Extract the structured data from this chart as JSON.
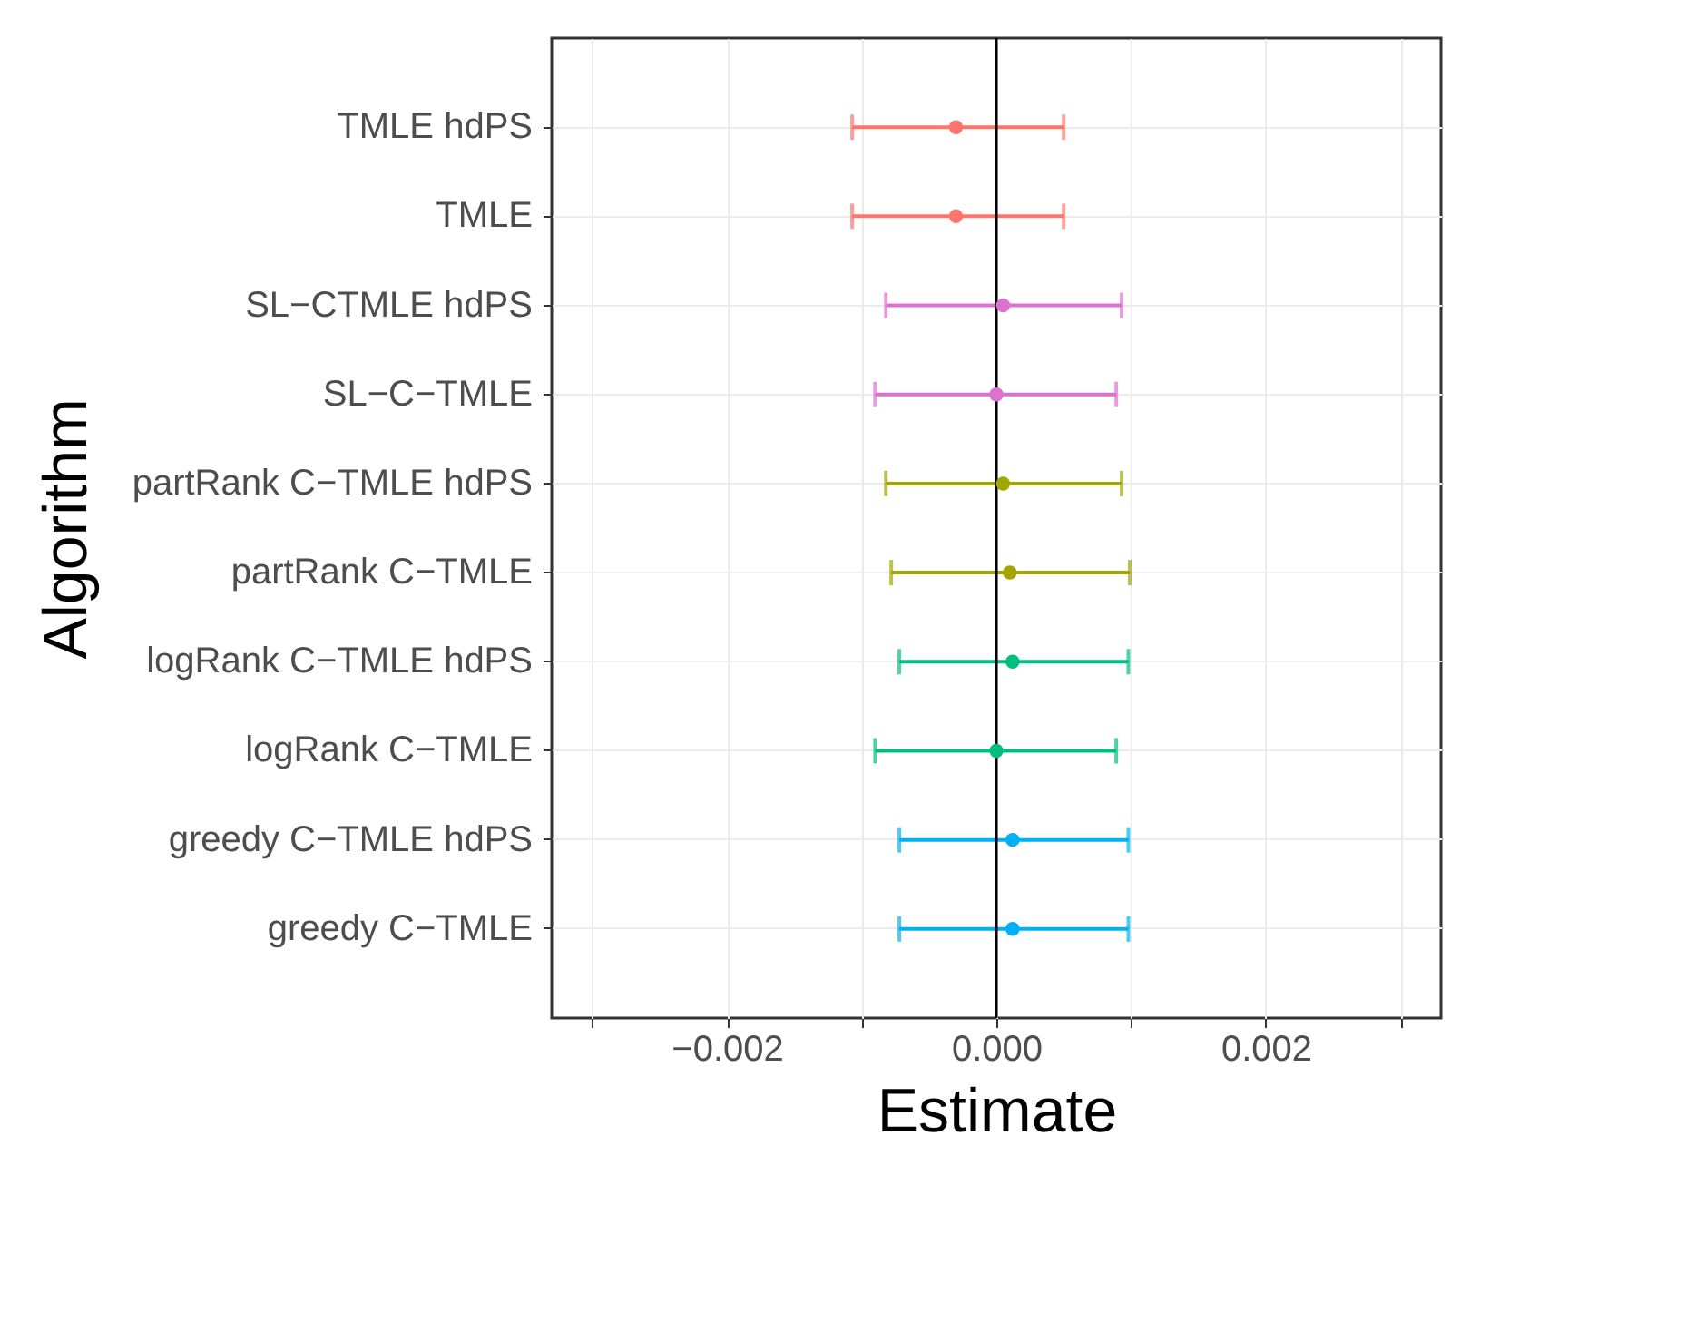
{
  "chart_data": {
    "type": "scatter",
    "orientation": "horizontal",
    "xlabel": "Estimate",
    "ylabel": "Algorithm",
    "categories": [
      "TMLE hdPS",
      "TMLE",
      "SL−CTMLE hdPS",
      "SL−C−TMLE",
      "partRank C−TMLE hdPS",
      "partRank C−TMLE",
      "logRank C−TMLE hdPS",
      "logRank C−TMLE",
      "greedy C−TMLE hdPS",
      "greedy C−TMLE"
    ],
    "values": [
      -0.0003,
      -0.0003,
      5e-05,
      0.0,
      5e-05,
      0.0001,
      0.00012,
      0.0,
      0.00012,
      0.00012
    ],
    "errors": [
      [
        -0.00107,
        0.0005
      ],
      [
        -0.00107,
        0.0005
      ],
      [
        -0.00082,
        0.00093
      ],
      [
        -0.0009,
        0.00089
      ],
      [
        -0.00082,
        0.00093
      ],
      [
        -0.00078,
        0.00099
      ],
      [
        -0.00072,
        0.00098
      ],
      [
        -0.0009,
        0.00089
      ],
      [
        -0.00072,
        0.00098
      ],
      [
        -0.00072,
        0.00098
      ]
    ],
    "colors": [
      "#f8766d",
      "#f8766d",
      "#dd71cf",
      "#dd71cf",
      "#a3a500",
      "#a3a500",
      "#00bf7d",
      "#00bf7d",
      "#00b0f6",
      "#00b0f6"
    ],
    "xlim": [
      -0.0033,
      0.0033
    ],
    "xticks": [
      {
        "value": -0.003,
        "label": null
      },
      {
        "value": -0.002,
        "label": "−0.002"
      },
      {
        "value": -0.001,
        "label": null
      },
      {
        "value": 0.0,
        "label": "0.000"
      },
      {
        "value": 0.001,
        "label": null
      },
      {
        "value": 0.002,
        "label": "0.002"
      },
      {
        "value": 0.003,
        "label": null
      }
    ],
    "ref_lines": [
      {
        "axis": "x",
        "value": 0.0,
        "label": null,
        "color": "#000000"
      }
    ],
    "grid": true,
    "marker": "circle"
  }
}
